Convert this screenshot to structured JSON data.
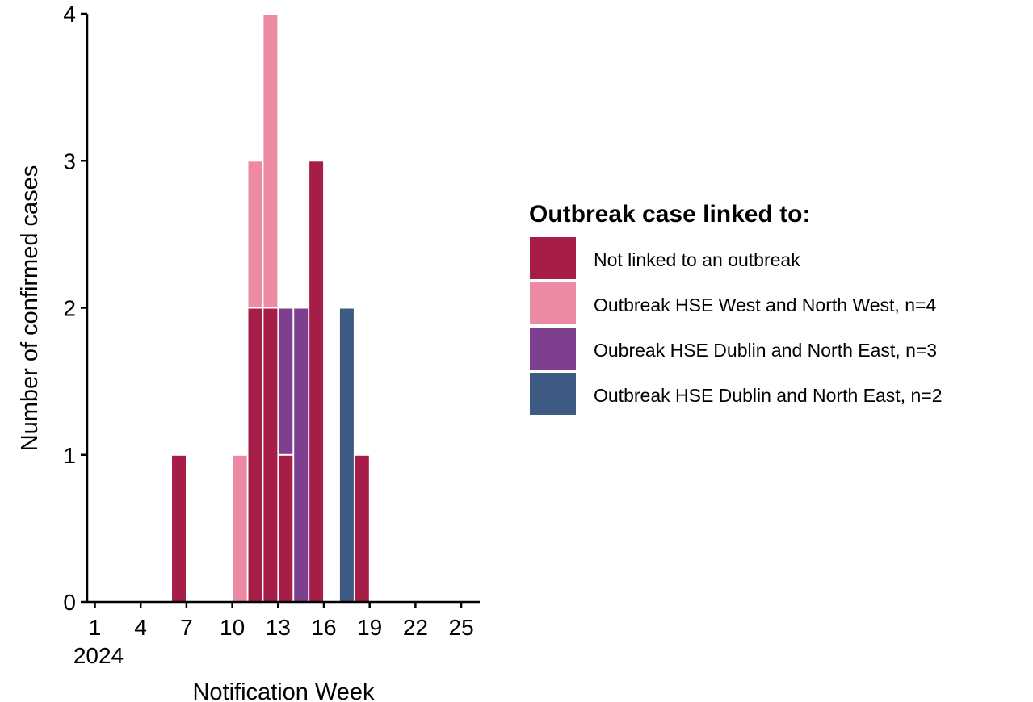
{
  "chart_data": {
    "type": "bar",
    "stacked": true,
    "x": [
      1,
      2,
      3,
      4,
      5,
      6,
      7,
      8,
      9,
      10,
      11,
      12,
      13,
      14,
      15,
      16,
      17,
      18,
      19,
      20,
      21,
      22,
      23,
      24,
      25
    ],
    "x_ticks": [
      "1",
      "4",
      "7",
      "10",
      "13",
      "16",
      "19",
      "22",
      "25"
    ],
    "x_year_label": "2024",
    "xlim": [
      1,
      26
    ],
    "xlabel": "Notification Week",
    "ylabel": "Number of confirmed cases",
    "ylim": [
      0,
      4
    ],
    "y_ticks": [
      "0",
      "1",
      "2",
      "3",
      "4"
    ],
    "grid": false,
    "legend_title": "Outbreak case linked to:",
    "legend_position": "right",
    "series": [
      {
        "name": "Not linked to an outbreak",
        "color": "#A61E47",
        "values": [
          0,
          0,
          0,
          0,
          0,
          1,
          0,
          0,
          0,
          0,
          2,
          2,
          1,
          0,
          3,
          0,
          0,
          1,
          0,
          0,
          0,
          0,
          0,
          0,
          0
        ]
      },
      {
        "name": "Outbreak HSE West and North West, n=4",
        "color": "#EB8AA2",
        "values": [
          0,
          0,
          0,
          0,
          0,
          0,
          0,
          0,
          0,
          1,
          1,
          2,
          0,
          0,
          0,
          0,
          0,
          0,
          0,
          0,
          0,
          0,
          0,
          0,
          0
        ]
      },
      {
        "name": "Oubreak HSE Dublin and North East, n=3",
        "color": "#7E3F8E",
        "values": [
          0,
          0,
          0,
          0,
          0,
          0,
          0,
          0,
          0,
          0,
          0,
          0,
          1,
          2,
          0,
          0,
          0,
          0,
          0,
          0,
          0,
          0,
          0,
          0,
          0
        ]
      },
      {
        "name": "Outbreak HSE Dublin and North East, n=2",
        "color": "#3D5A82",
        "values": [
          0,
          0,
          0,
          0,
          0,
          0,
          0,
          0,
          0,
          0,
          0,
          0,
          0,
          0,
          0,
          0,
          2,
          0,
          0,
          0,
          0,
          0,
          0,
          0,
          0
        ]
      }
    ]
  }
}
